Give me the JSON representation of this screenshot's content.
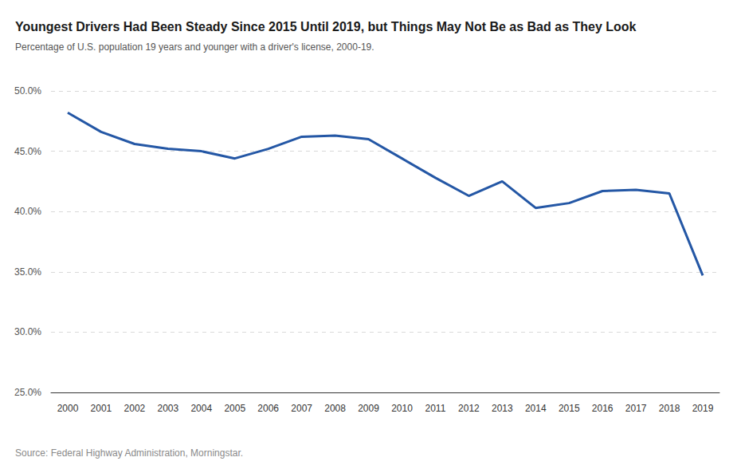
{
  "chart_data": {
    "type": "line",
    "title": "Youngest Drivers Had Been Steady Since 2015 Until 2019, but Things May Not Be as Bad as They Look",
    "subtitle": "Percentage of U.S. population 19 years and younger with a driver's license, 2000-19.",
    "source": "Source: Federal Highway Administration, Morningstar.",
    "categories": [
      "2000",
      "2001",
      "2002",
      "2003",
      "2004",
      "2005",
      "2006",
      "2007",
      "2008",
      "2009",
      "2010",
      "2011",
      "2012",
      "2013",
      "2014",
      "2015",
      "2016",
      "2017",
      "2018",
      "2019"
    ],
    "values": [
      48.2,
      46.6,
      45.6,
      45.2,
      45.0,
      44.4,
      45.2,
      46.2,
      46.3,
      46.0,
      44.4,
      42.8,
      41.3,
      42.5,
      40.3,
      40.7,
      41.7,
      41.8,
      41.5,
      34.7
    ],
    "color": "#2457a5",
    "ylim": [
      25,
      50
    ],
    "yticks": [
      {
        "value": 25,
        "label": "25.0%"
      },
      {
        "value": 30,
        "label": "30.0%"
      },
      {
        "value": 35,
        "label": "35.0%"
      },
      {
        "value": 40,
        "label": "40.0%"
      },
      {
        "value": 45,
        "label": "45.0%"
      },
      {
        "value": 50,
        "label": "50.0%"
      }
    ],
    "grid": true
  }
}
